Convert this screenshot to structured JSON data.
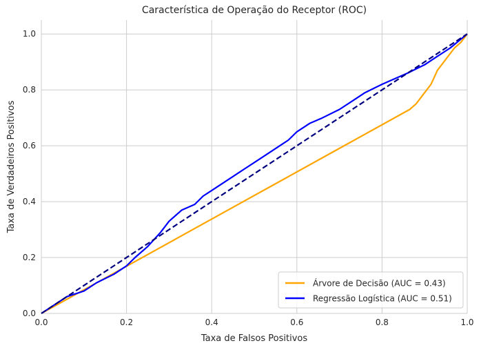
{
  "chart_data": {
    "type": "line",
    "title": "Característica de Operação do Receptor (ROC)",
    "xlabel": "Taxa de Falsos Positivos",
    "ylabel": "Taxa de Verdadeiros Positivos",
    "xlim": [
      0.0,
      1.0
    ],
    "ylim": [
      0.0,
      1.05
    ],
    "xticks": [
      "0.0",
      "0.2",
      "0.4",
      "0.6",
      "0.8",
      "1.0"
    ],
    "yticks": [
      "0.0",
      "0.2",
      "0.4",
      "0.6",
      "0.8",
      "1.0"
    ],
    "grid": true,
    "legend_position": "lower-right",
    "series": [
      {
        "name": "Árvore de Decisão (AUC = 0.43)",
        "color": "#FFA500",
        "style": "solid",
        "x": [
          0.0,
          0.865,
          0.88,
          0.9,
          0.915,
          0.93,
          0.95,
          0.97,
          0.985,
          1.0
        ],
        "y": [
          0.0,
          0.73,
          0.75,
          0.79,
          0.82,
          0.87,
          0.91,
          0.95,
          0.97,
          1.0
        ]
      },
      {
        "name": "Regressão Logística (AUC = 0.51)",
        "color": "#0000FF",
        "style": "solid",
        "x": [
          0.0,
          0.03,
          0.06,
          0.1,
          0.13,
          0.17,
          0.2,
          0.22,
          0.25,
          0.28,
          0.3,
          0.33,
          0.36,
          0.38,
          0.4,
          0.43,
          0.46,
          0.48,
          0.5,
          0.53,
          0.56,
          0.58,
          0.6,
          0.63,
          0.66,
          0.7,
          0.73,
          0.76,
          0.8,
          0.83,
          0.86,
          0.9,
          0.93,
          0.96,
          1.0
        ],
        "y": [
          0.0,
          0.03,
          0.06,
          0.08,
          0.11,
          0.14,
          0.17,
          0.2,
          0.24,
          0.29,
          0.33,
          0.37,
          0.39,
          0.42,
          0.44,
          0.47,
          0.5,
          0.52,
          0.54,
          0.57,
          0.6,
          0.62,
          0.65,
          0.68,
          0.7,
          0.73,
          0.76,
          0.79,
          0.82,
          0.84,
          0.86,
          0.89,
          0.92,
          0.95,
          1.0
        ]
      }
    ],
    "reference_line": {
      "color": "#000080",
      "style": "dashed",
      "x": [
        0.0,
        1.0
      ],
      "y": [
        0.0,
        1.0
      ]
    }
  }
}
